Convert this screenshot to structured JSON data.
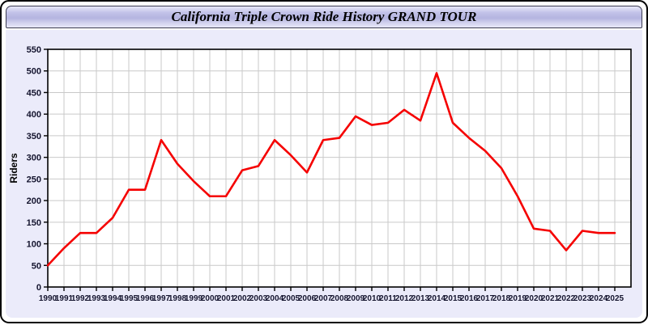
{
  "window": {
    "title": "California Triple Crown Ride History GRAND TOUR"
  },
  "colors": {
    "line": "#f50000",
    "content_background": "#ebebfa",
    "plot_background": "#ffffff",
    "grid": "#c9c9c9",
    "axis": "#000000",
    "tick_text": "#14142e"
  },
  "chart_data": {
    "type": "line",
    "title": "California Triple Crown Ride History GRAND TOUR",
    "xlabel": "",
    "ylabel": "Riders",
    "ylim": [
      0,
      550
    ],
    "ytick_step": 50,
    "grid": true,
    "legend": "none",
    "x": [
      1990,
      1991,
      1992,
      1993,
      1994,
      1995,
      1996,
      1997,
      1998,
      1999,
      2000,
      2001,
      2002,
      2003,
      2004,
      2005,
      2006,
      2007,
      2008,
      2009,
      2010,
      2011,
      2012,
      2013,
      2014,
      2015,
      2016,
      2017,
      2018,
      2019,
      2020,
      2021,
      2022,
      2023,
      2024,
      2025
    ],
    "series": [
      {
        "name": "Riders",
        "color": "#f50000",
        "values": [
          50,
          90,
          125,
          125,
          160,
          225,
          225,
          340,
          285,
          245,
          210,
          210,
          270,
          280,
          340,
          305,
          265,
          340,
          345,
          395,
          375,
          380,
          410,
          385,
          495,
          380,
          345,
          315,
          275,
          210,
          135,
          130,
          85,
          130,
          125,
          125
        ]
      }
    ]
  }
}
